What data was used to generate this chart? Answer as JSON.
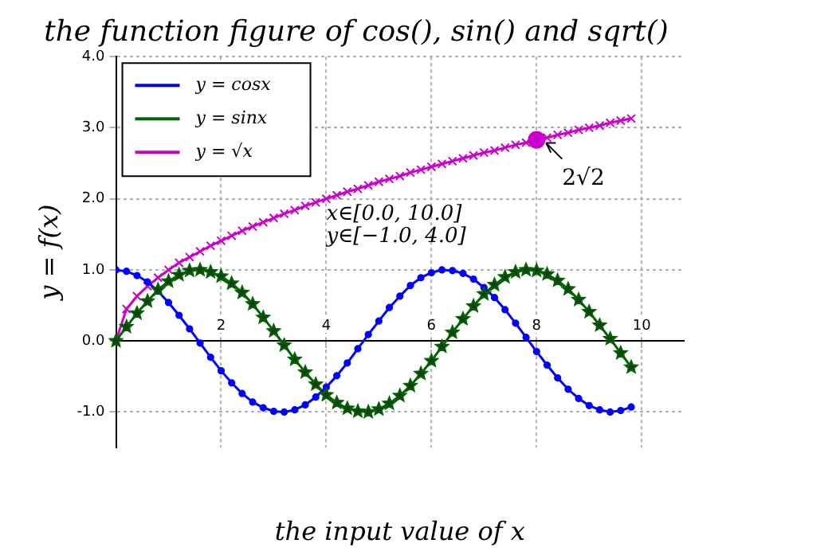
{
  "chart_data": {
    "type": "line",
    "title": "the function figure of cos(), sin() and sqrt()",
    "xlabel": "the input value of x",
    "ylabel": "y = f(x)",
    "x": [
      0,
      0.2,
      0.4,
      0.6,
      0.8,
      1.0,
      1.2,
      1.4,
      1.6,
      1.8,
      2.0,
      2.2,
      2.4,
      2.6,
      2.8,
      3.0,
      3.2,
      3.4,
      3.6,
      3.8,
      4.0,
      4.2,
      4.4,
      4.6,
      4.8,
      5.0,
      5.2,
      5.4,
      5.6,
      5.8,
      6.0,
      6.2,
      6.4,
      6.6,
      6.8,
      7.0,
      7.2,
      7.4,
      7.6,
      7.8,
      8.0,
      8.2,
      8.4,
      8.6,
      8.8,
      9.0,
      9.2,
      9.4,
      9.6,
      9.8
    ],
    "series": [
      {
        "name": "y = cosx",
        "color": "#0000ff",
        "marker": "circle",
        "values": [
          1,
          0.98,
          0.92,
          0.83,
          0.7,
          0.54,
          0.36,
          0.17,
          -0.03,
          -0.23,
          -0.42,
          -0.59,
          -0.74,
          -0.86,
          -0.94,
          -0.99,
          -1.0,
          -0.97,
          -0.9,
          -0.79,
          -0.65,
          -0.49,
          -0.31,
          -0.11,
          0.09,
          0.28,
          0.47,
          0.63,
          0.78,
          0.89,
          0.96,
          1.0,
          0.99,
          0.95,
          0.87,
          0.75,
          0.61,
          0.44,
          0.25,
          0.05,
          -0.15,
          -0.34,
          -0.52,
          -0.68,
          -0.81,
          -0.91,
          -0.97,
          -1.0,
          -0.98,
          -0.93
        ]
      },
      {
        "name": "y = sinx",
        "color": "#006400",
        "marker": "star",
        "values": [
          0,
          0.2,
          0.39,
          0.56,
          0.72,
          0.84,
          0.93,
          0.99,
          1.0,
          0.97,
          0.91,
          0.81,
          0.68,
          0.52,
          0.33,
          0.14,
          -0.06,
          -0.26,
          -0.44,
          -0.61,
          -0.76,
          -0.87,
          -0.95,
          -0.99,
          -1.0,
          -0.96,
          -0.88,
          -0.77,
          -0.63,
          -0.46,
          -0.28,
          -0.08,
          0.12,
          0.31,
          0.49,
          0.66,
          0.79,
          0.9,
          0.97,
          1.0,
          0.99,
          0.94,
          0.85,
          0.73,
          0.58,
          0.41,
          0.22,
          0.03,
          -0.17,
          -0.37
        ]
      },
      {
        "name": "y = √x",
        "color": "#cc00cc",
        "marker": "cross",
        "values": [
          0,
          0.45,
          0.63,
          0.77,
          0.89,
          1,
          1.1,
          1.18,
          1.26,
          1.34,
          1.41,
          1.48,
          1.55,
          1.61,
          1.67,
          1.73,
          1.79,
          1.84,
          1.9,
          1.95,
          2,
          2.05,
          2.1,
          2.14,
          2.19,
          2.24,
          2.28,
          2.32,
          2.37,
          2.41,
          2.45,
          2.49,
          2.53,
          2.57,
          2.61,
          2.65,
          2.68,
          2.72,
          2.76,
          2.79,
          2.83,
          2.86,
          2.9,
          2.93,
          2.97,
          3,
          3.03,
          3.07,
          3.1,
          3.13
        ]
      },
      {
        "type": "scatter",
        "color": "#cc00cc",
        "marker": "circle",
        "x": [
          8
        ],
        "values": [
          2.83
        ]
      }
    ],
    "xlim": [
      0,
      10.8
    ],
    "xticks": [
      2,
      4,
      6,
      8,
      10
    ],
    "ylim": [
      -1.5,
      4.0
    ],
    "yticks": [
      {
        "value": -1,
        "label": "-1.0"
      },
      {
        "value": 0,
        "label": "0.0"
      },
      {
        "value": 1,
        "label": "1.0"
      },
      {
        "value": 2,
        "label": "2.0"
      },
      {
        "value": 3,
        "label": "3.0"
      },
      {
        "value": 4,
        "label": "4.0"
      }
    ],
    "annotations": [
      {
        "text": "2√2",
        "x": 8,
        "y": 2.83
      },
      "x∈[0.0, 10.0]",
      "y∈[−1.0, 4.0]"
    ],
    "grid": true,
    "legend": "top left"
  }
}
